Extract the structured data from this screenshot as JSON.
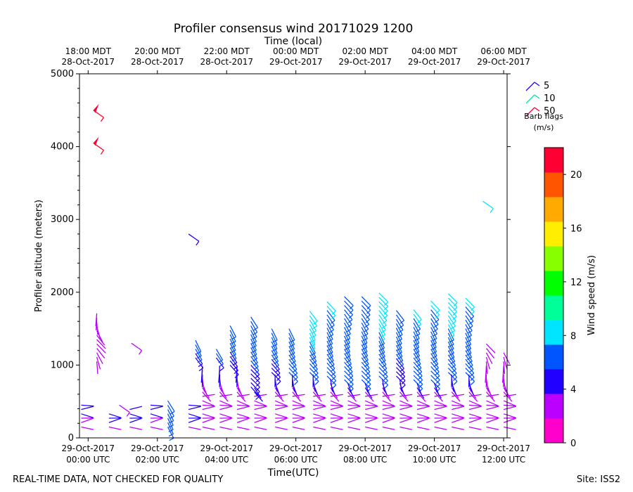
{
  "chart_data": {
    "type": "wind-barb",
    "title": "Profiler consensus wind 20171029 1200",
    "xlabel_bottom": "Time(UTC)",
    "xlabel_top": "Time (local)",
    "ylabel": "Profiler altitude (meters)",
    "ylim": [
      0,
      5000
    ],
    "y_ticks": [
      "0",
      "1000",
      "2000",
      "3000",
      "4000",
      "5000"
    ],
    "xlim_hours": [
      -0.25,
      12.1
    ],
    "bottom_ticks": [
      {
        "hour": 0,
        "line1": "29-Oct-2017",
        "line2": "00:00 UTC"
      },
      {
        "hour": 2,
        "line1": "29-Oct-2017",
        "line2": "02:00 UTC"
      },
      {
        "hour": 4,
        "line1": "29-Oct-2017",
        "line2": "04:00 UTC"
      },
      {
        "hour": 6,
        "line1": "29-Oct-2017",
        "line2": "06:00 UTC"
      },
      {
        "hour": 8,
        "line1": "29-Oct-2017",
        "line2": "08:00 UTC"
      },
      {
        "hour": 10,
        "line1": "29-Oct-2017",
        "line2": "10:00 UTC"
      },
      {
        "hour": 12,
        "line1": "29-Oct-2017",
        "line2": "12:00 UTC"
      }
    ],
    "top_ticks": [
      {
        "hour": 0,
        "line1": "18:00 MDT",
        "line2": "28-Oct-2017"
      },
      {
        "hour": 2,
        "line1": "20:00 MDT",
        "line2": "28-Oct-2017"
      },
      {
        "hour": 4,
        "line1": "22:00 MDT",
        "line2": "28-Oct-2017"
      },
      {
        "hour": 6,
        "line1": "00:00 MDT",
        "line2": "29-Oct-2017"
      },
      {
        "hour": 8,
        "line1": "02:00 MDT",
        "line2": "29-Oct-2017"
      },
      {
        "hour": 10,
        "line1": "04:00 MDT",
        "line2": "29-Oct-2017"
      },
      {
        "hour": 12,
        "line1": "06:00 MDT",
        "line2": "29-Oct-2017"
      }
    ],
    "colorbar": {
      "label": "Wind speed (m/s)",
      "min": 0,
      "max": 22,
      "tick_labels": [
        "0",
        "4",
        "8",
        "12",
        "16",
        "20"
      ],
      "tick_values": [
        0,
        4,
        8,
        12,
        16,
        20
      ],
      "colors": [
        "#ff00cc",
        "#bb00ff",
        "#2200ff",
        "#0055ff",
        "#00e5ff",
        "#00ff99",
        "#00ff00",
        "#88ff00",
        "#ffee00",
        "#ffaa00",
        "#ff5500",
        "#ff0033"
      ]
    },
    "legend": {
      "title_line1": "Barb flags",
      "title_line2": "(m/s)",
      "entries": [
        {
          "label": "5",
          "color": "#2200ff"
        },
        {
          "label": "10",
          "color": "#00e5aa"
        },
        {
          "label": "50",
          "color": "#ff0033"
        }
      ]
    },
    "columns": [
      {
        "t": -0.2,
        "base": 150,
        "top": 450,
        "speed": 3.0
      },
      {
        "t": 0.25,
        "base": 1050,
        "top": 1750,
        "speed": 2.0
      },
      {
        "t": 0.6,
        "base": 150,
        "top": 350,
        "speed": 3.5
      },
      {
        "t": 1.2,
        "base": 150,
        "top": 400,
        "speed": 3.5
      },
      {
        "t": 1.8,
        "base": 150,
        "top": 450,
        "speed": 3.0
      },
      {
        "t": 2.3,
        "base": 150,
        "top": 550,
        "speed": 5.5
      },
      {
        "t": 2.9,
        "base": 150,
        "top": 500,
        "speed": 3.5
      },
      {
        "t": 3.1,
        "base": 1100,
        "top": 1350,
        "speed": 5.0
      },
      {
        "t": 3.3,
        "base": 150,
        "top": 1000,
        "speed": 2.5
      },
      {
        "t": 3.7,
        "base": 1100,
        "top": 1250,
        "speed": 5.0
      },
      {
        "t": 3.8,
        "base": 150,
        "top": 1000,
        "speed": 2.5
      },
      {
        "t": 4.1,
        "base": 1000,
        "top": 1550,
        "speed": 5.0
      },
      {
        "t": 4.3,
        "base": 150,
        "top": 1000,
        "speed": 2.5
      },
      {
        "t": 4.7,
        "base": 700,
        "top": 1700,
        "speed": 5.0
      },
      {
        "t": 4.8,
        "base": 150,
        "top": 700,
        "speed": 2.5
      },
      {
        "t": 5.3,
        "base": 900,
        "top": 1500,
        "speed": 5.0
      },
      {
        "t": 5.4,
        "base": 150,
        "top": 900,
        "speed": 2.5
      },
      {
        "t": 5.8,
        "base": 900,
        "top": 1550,
        "speed": 5.5
      },
      {
        "t": 5.9,
        "base": 150,
        "top": 900,
        "speed": 2.5
      },
      {
        "t": 6.4,
        "base": 900,
        "top": 1750,
        "speed": 6.5
      },
      {
        "t": 6.5,
        "base": 150,
        "top": 900,
        "speed": 2.5
      },
      {
        "t": 6.9,
        "base": 850,
        "top": 1900,
        "speed": 6.0
      },
      {
        "t": 7.0,
        "base": 150,
        "top": 850,
        "speed": 2.5
      },
      {
        "t": 7.4,
        "base": 800,
        "top": 1950,
        "speed": 5.5
      },
      {
        "t": 7.5,
        "base": 150,
        "top": 800,
        "speed": 2.5
      },
      {
        "t": 7.9,
        "base": 800,
        "top": 1950,
        "speed": 5.5
      },
      {
        "t": 8.0,
        "base": 150,
        "top": 800,
        "speed": 2.5
      },
      {
        "t": 8.4,
        "base": 850,
        "top": 2000,
        "speed": 6.5
      },
      {
        "t": 8.5,
        "base": 150,
        "top": 850,
        "speed": 2.5
      },
      {
        "t": 8.9,
        "base": 850,
        "top": 1750,
        "speed": 5.0
      },
      {
        "t": 9.0,
        "base": 150,
        "top": 850,
        "speed": 2.5
      },
      {
        "t": 9.4,
        "base": 800,
        "top": 1800,
        "speed": 6.0
      },
      {
        "t": 9.5,
        "base": 150,
        "top": 800,
        "speed": 2.5
      },
      {
        "t": 9.9,
        "base": 800,
        "top": 1900,
        "speed": 6.0
      },
      {
        "t": 10.0,
        "base": 150,
        "top": 800,
        "speed": 2.5
      },
      {
        "t": 10.4,
        "base": 900,
        "top": 2000,
        "speed": 6.5
      },
      {
        "t": 10.5,
        "base": 150,
        "top": 900,
        "speed": 2.5
      },
      {
        "t": 10.9,
        "base": 900,
        "top": 1950,
        "speed": 6.0
      },
      {
        "t": 11.0,
        "base": 150,
        "top": 900,
        "speed": 2.5
      },
      {
        "t": 11.5,
        "base": 150,
        "top": 1300,
        "speed": 2.0
      },
      {
        "t": 12.0,
        "base": 150,
        "top": 1200,
        "speed": 2.0
      }
    ],
    "isolated_barbs": [
      {
        "t": 0.15,
        "alt": 4500,
        "speed": 21.0
      },
      {
        "t": 0.15,
        "alt": 4050,
        "speed": 21.0
      },
      {
        "t": 0.9,
        "alt": 450,
        "speed": 3.5
      },
      {
        "t": 1.25,
        "alt": 1300,
        "speed": 2.5
      },
      {
        "t": 2.9,
        "alt": 2800,
        "speed": 5.0
      },
      {
        "t": 11.4,
        "alt": 3250,
        "speed": 8.0
      }
    ]
  },
  "footer": {
    "left_note": "REAL-TIME DATA, NOT CHECKED FOR QUALITY",
    "site": "Site: ISS2"
  }
}
